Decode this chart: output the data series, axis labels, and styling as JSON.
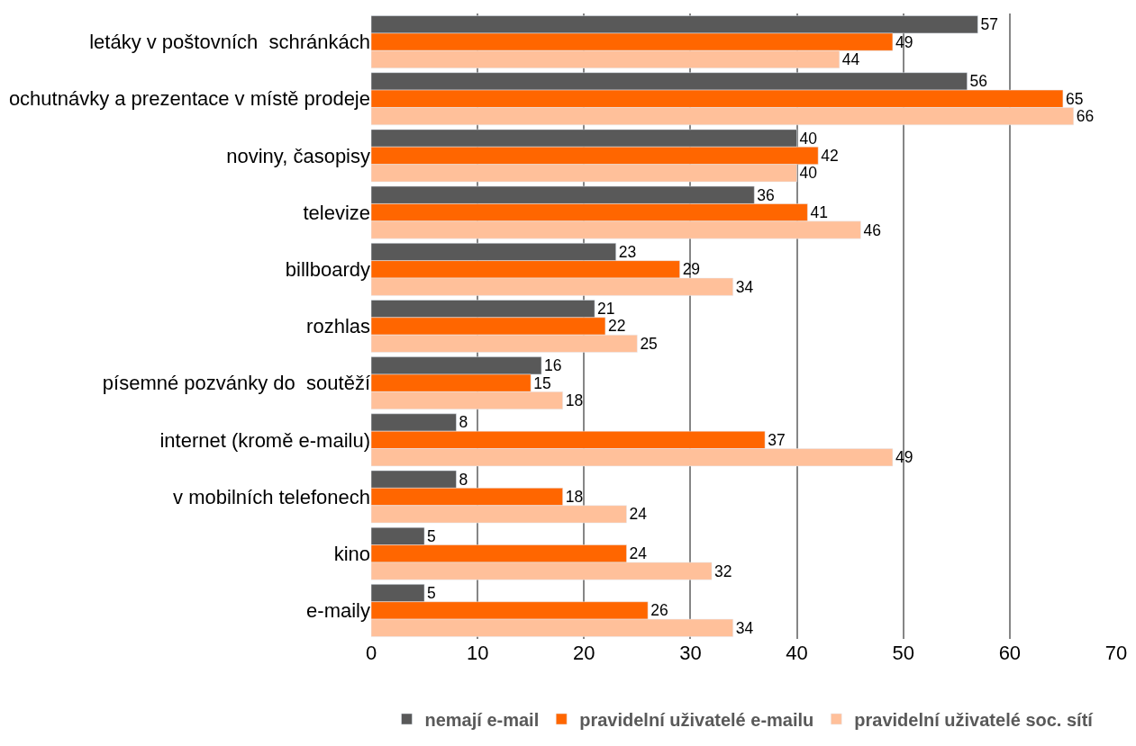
{
  "chart_data": {
    "type": "bar",
    "orientation": "horizontal",
    "categories": [
      "letáky v poštovních  schránkách",
      "ochutnávky a prezentace v místě prodeje",
      "noviny, časopisy",
      "televize",
      "billboardy",
      "rozhlas",
      "písemné pozvánky do  soutěží",
      "internet (kromě e-mailu)",
      "v mobilních telefonech",
      "kino",
      "e-maily"
    ],
    "series": [
      {
        "name": "nemají e-mail",
        "color": "#595959",
        "values": [
          57,
          56,
          40,
          36,
          23,
          21,
          16,
          8,
          8,
          5,
          5
        ]
      },
      {
        "name": "pravidelní uživatelé e-mailu",
        "color": "#ff6600",
        "values": [
          49,
          65,
          42,
          41,
          29,
          22,
          15,
          37,
          18,
          24,
          26
        ]
      },
      {
        "name": "pravidelní uživatelé soc. sítí",
        "color": "#ffc09a",
        "values": [
          44,
          66,
          40,
          46,
          34,
          25,
          18,
          49,
          24,
          32,
          34
        ]
      }
    ],
    "xlim": [
      0,
      70
    ],
    "xticks": [
      0,
      10,
      20,
      30,
      40,
      50,
      60,
      70
    ],
    "grid": "x",
    "legend": "bottom",
    "data_labels": true
  }
}
